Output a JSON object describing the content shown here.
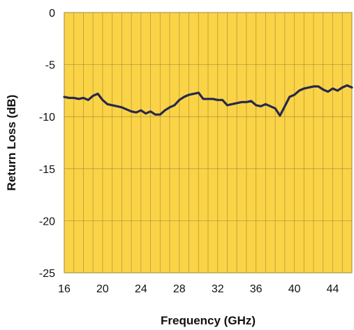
{
  "chart_data": {
    "type": "line",
    "title": "",
    "xlabel": "Frequency (GHz)",
    "ylabel": "Return Loss (dB)",
    "xlim": [
      16,
      46
    ],
    "ylim": [
      -25,
      0
    ],
    "x_ticks": [
      16,
      20,
      24,
      28,
      32,
      36,
      40,
      44
    ],
    "y_ticks": [
      0,
      -5,
      -10,
      -15,
      -20,
      -25
    ],
    "x_grid_step": 1,
    "grid": true,
    "legend": "none",
    "colors": {
      "plot_background": "#fbd346",
      "grid": "#9a8a3a",
      "line": "#26284f"
    },
    "series": [
      {
        "x": [
          16,
          16.5,
          17,
          17.5,
          18,
          18.5,
          19,
          19.5,
          20,
          20.5,
          21,
          21.5,
          22,
          22.5,
          23,
          23.5,
          24,
          24.5,
          25,
          25.5,
          26,
          26.5,
          27,
          27.5,
          28,
          28.5,
          29,
          29.5,
          30,
          30.5,
          31,
          31.5,
          32,
          32.5,
          33,
          33.5,
          34,
          34.5,
          35,
          35.5,
          36,
          36.5,
          37,
          37.5,
          38,
          38.5,
          39,
          39.5,
          40,
          40.5,
          41,
          41.5,
          42,
          42.5,
          43,
          43.5,
          44,
          44.5,
          45,
          45.5,
          46
        ],
        "y": [
          -8.1,
          -8.2,
          -8.2,
          -8.3,
          -8.2,
          -8.4,
          -8.0,
          -7.8,
          -8.4,
          -8.8,
          -8.9,
          -9.0,
          -9.1,
          -9.3,
          -9.5,
          -9.6,
          -9.4,
          -9.7,
          -9.5,
          -9.8,
          -9.8,
          -9.4,
          -9.1,
          -8.9,
          -8.4,
          -8.1,
          -7.9,
          -7.8,
          -7.7,
          -8.3,
          -8.3,
          -8.3,
          -8.4,
          -8.4,
          -8.9,
          -8.8,
          -8.7,
          -8.6,
          -8.6,
          -8.5,
          -8.9,
          -9.0,
          -8.8,
          -9.0,
          -9.2,
          -9.9,
          -9.0,
          -8.1,
          -7.9,
          -7.5,
          -7.3,
          -7.2,
          -7.1,
          -7.1,
          -7.4,
          -7.6,
          -7.3,
          -7.5,
          -7.2,
          -7.0,
          -7.2
        ]
      }
    ]
  }
}
